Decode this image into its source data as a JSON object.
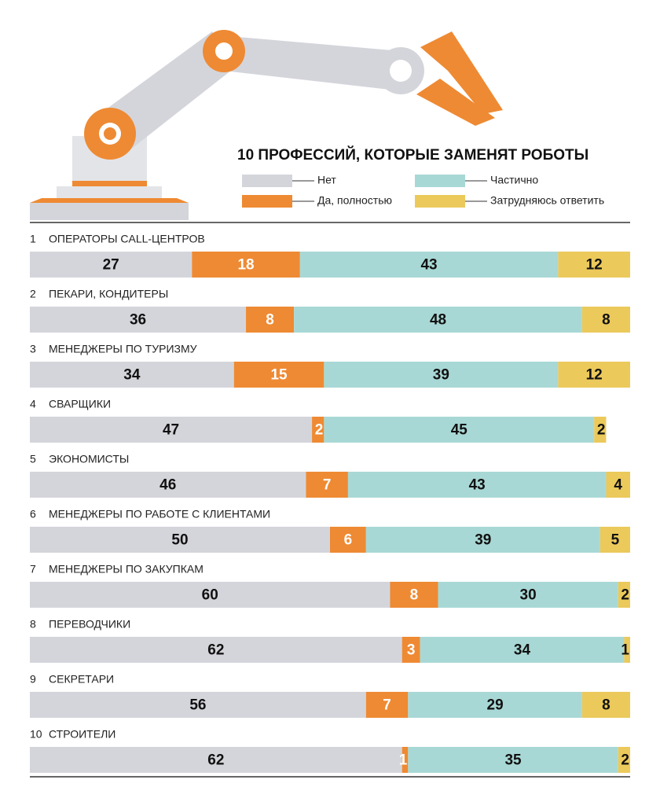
{
  "chart_data": {
    "type": "stacked_barh",
    "title": "10 ПРОФЕССИЙ, КОТОРЫЕ ЗАМЕНЯТ РОБОТЫ",
    "ranks": [
      1,
      2,
      3,
      4,
      5,
      6,
      7,
      8,
      9,
      10
    ],
    "categories": [
      "ОПЕРАТОРЫ CALL-ЦЕНТРОВ",
      "ПЕКАРИ, КОНДИТЕРЫ",
      "МЕНЕДЖЕРЫ ПО ТУРИЗМУ",
      "СВАРЩИКИ",
      "ЭКОНОМИСТЫ",
      "МЕНЕДЖЕРЫ ПО РАБОТЕ С КЛИЕНТАМИ",
      "МЕНЕДЖЕРЫ ПО ЗАКУПКАМ",
      "ПЕРЕВОДЧИКИ",
      "СЕКРЕТАРИ",
      "СТРОИТЕЛИ"
    ],
    "xlim": [
      0,
      100
    ],
    "series": [
      {
        "name": "Нет",
        "color": "#d4d5db",
        "values": [
          27,
          36,
          34,
          47,
          46,
          50,
          60,
          62,
          56,
          62
        ]
      },
      {
        "name": "Да, полностью",
        "color": "#ee8a33",
        "values": [
          18,
          8,
          15,
          2,
          7,
          6,
          8,
          3,
          7,
          1
        ]
      },
      {
        "name": "Частично",
        "color": "#a8d8d5",
        "values": [
          43,
          48,
          39,
          45,
          43,
          39,
          30,
          34,
          29,
          35
        ]
      },
      {
        "name": "Затрудняюсь ответить",
        "color": "#ebc95b",
        "values": [
          12,
          8,
          12,
          2,
          4,
          5,
          2,
          1,
          8,
          2
        ]
      }
    ]
  }
}
